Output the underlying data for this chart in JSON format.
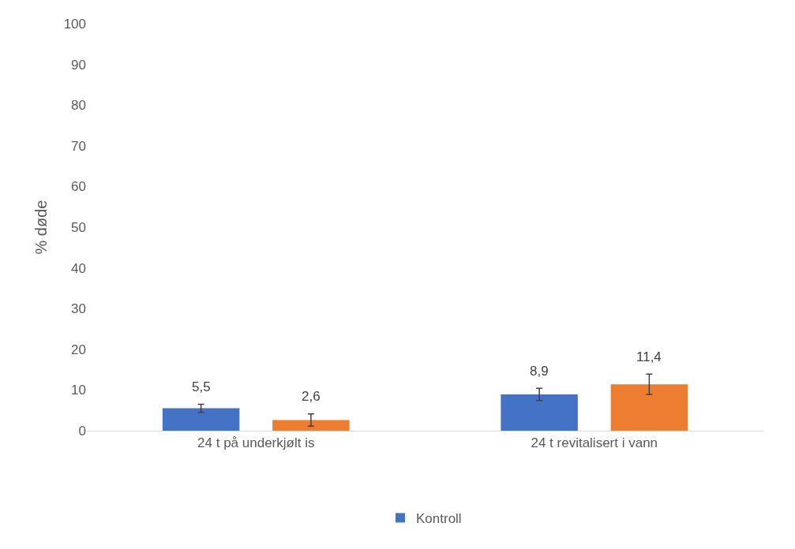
{
  "chart_data": {
    "type": "bar",
    "ylabel": "% døde",
    "categories": [
      "24 t på underkjølt is",
      "24 t revitalisert i vann"
    ],
    "series": [
      {
        "name": "Kontroll",
        "color": "#4472c4",
        "values": [
          5.5,
          8.9
        ],
        "errors": [
          1,
          1.5
        ],
        "value_labels": [
          "5,5",
          "8,9"
        ]
      },
      {
        "color": "#ed7d31",
        "values": [
          2.6,
          11.4
        ],
        "errors": [
          1.5,
          2.5
        ],
        "value_labels": [
          "2,6",
          "11,4"
        ]
      }
    ],
    "ylim": [
      0,
      100
    ],
    "yticks": [
      0,
      10,
      20,
      30,
      40,
      50,
      60,
      70,
      80,
      90,
      100
    ],
    "legend": "bottom"
  }
}
